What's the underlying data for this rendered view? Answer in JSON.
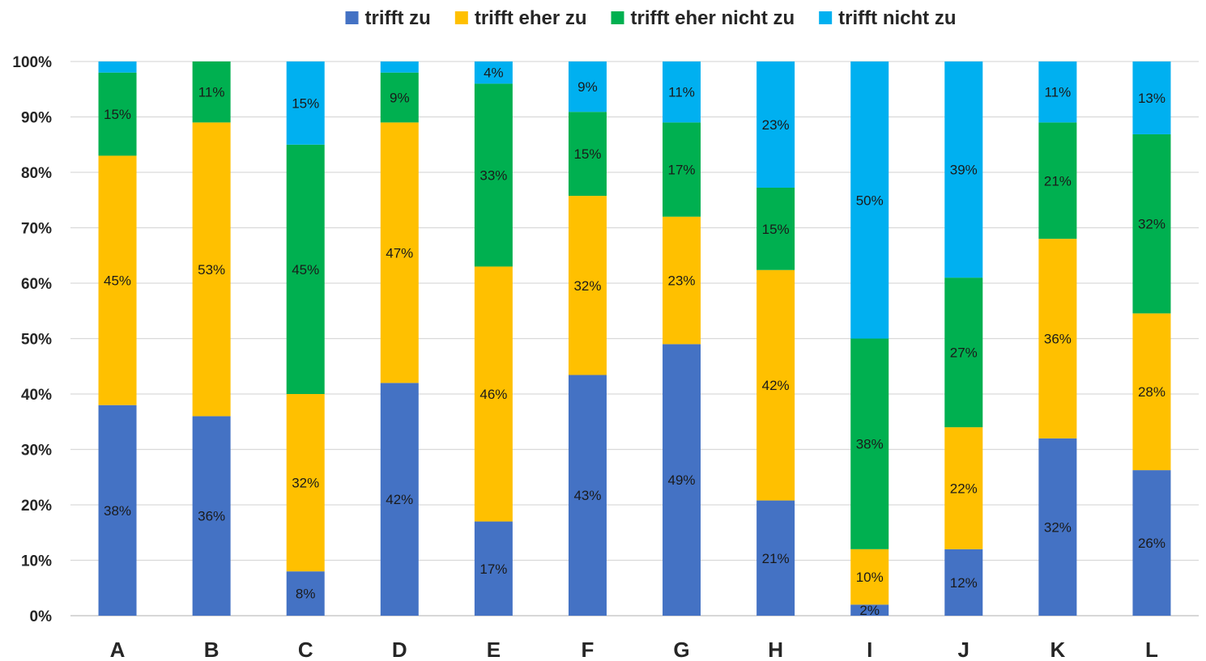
{
  "chart_data": {
    "type": "bar",
    "stacked": true,
    "percent_stacked": true,
    "categories": [
      "A",
      "B",
      "C",
      "D",
      "E",
      "F",
      "G",
      "H",
      "I",
      "J",
      "K",
      "L"
    ],
    "series": [
      {
        "name": "trifft zu",
        "color": "#4472C4",
        "values": [
          38,
          36,
          8,
          42,
          17,
          43,
          49,
          21,
          2,
          12,
          32,
          26
        ],
        "labels": [
          "38%",
          "36%",
          "8%",
          "42%",
          "17%",
          "43%",
          "49%",
          "21%",
          "2%",
          "12%",
          "32%",
          "26%"
        ]
      },
      {
        "name": "trifft eher zu",
        "color": "#FFC000",
        "values": [
          45,
          53,
          32,
          47,
          46,
          32,
          23,
          42,
          10,
          22,
          36,
          28
        ],
        "labels": [
          "45%",
          "53%",
          "32%",
          "47%",
          "46%",
          "32%",
          "23%",
          "42%",
          "10%",
          "22%",
          "36%",
          "28%"
        ]
      },
      {
        "name": "trifft eher nicht zu",
        "color": "#00B050",
        "values": [
          15,
          11,
          45,
          9,
          33,
          15,
          17,
          15,
          38,
          27,
          21,
          32
        ],
        "labels": [
          "15%",
          "11%",
          "45%",
          "9%",
          "33%",
          "15%",
          "17%",
          "15%",
          "38%",
          "27%",
          "21%",
          "32%"
        ]
      },
      {
        "name": "trifft nicht zu",
        "color": "#00B0F0",
        "values": [
          2,
          0,
          15,
          2,
          4,
          9,
          11,
          23,
          50,
          39,
          11,
          13
        ],
        "labels": [
          "",
          "",
          "15%",
          "",
          "4%",
          "9%",
          "11%",
          "23%",
          "50%",
          "39%",
          "11%",
          "13%"
        ]
      }
    ],
    "yticks": [
      "0%",
      "10%",
      "20%",
      "30%",
      "40%",
      "50%",
      "60%",
      "70%",
      "80%",
      "90%",
      "100%"
    ],
    "ylim": [
      0,
      100
    ],
    "grid": true,
    "gridline_color": "#D9D9D9",
    "legend_position": "top-center",
    "title": "",
    "xlabel": "",
    "ylabel": ""
  }
}
